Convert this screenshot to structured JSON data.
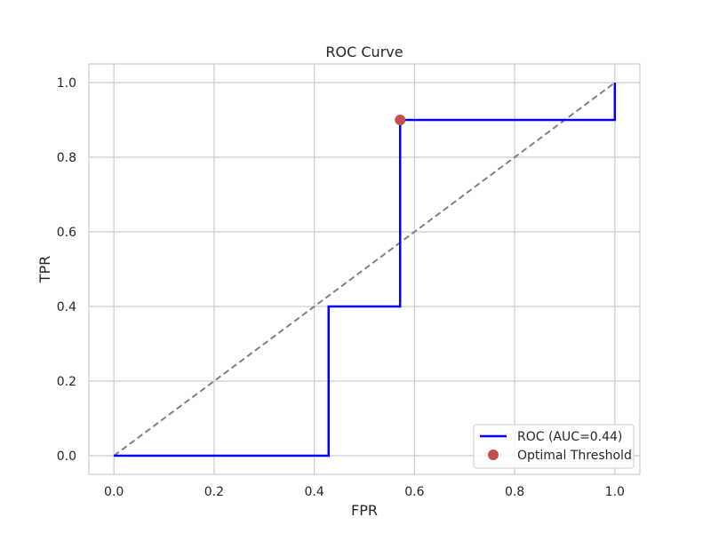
{
  "chart_data": {
    "type": "line",
    "title": "ROC Curve",
    "xlabel": "FPR",
    "ylabel": "TPR",
    "xlim": [
      -0.05,
      1.05
    ],
    "ylim": [
      -0.05,
      1.05
    ],
    "xticks": [
      0.0,
      0.2,
      0.4,
      0.6,
      0.8,
      1.0
    ],
    "yticks": [
      0.0,
      0.2,
      0.4,
      0.6,
      0.8,
      1.0
    ],
    "xtick_labels": [
      "0.0",
      "0.2",
      "0.4",
      "0.6",
      "0.8",
      "1.0"
    ],
    "ytick_labels": [
      "0.0",
      "0.2",
      "0.4",
      "0.6",
      "0.8",
      "1.0"
    ],
    "grid": true,
    "legend_position": "lower-right",
    "series": [
      {
        "name": "ROC (AUC=0.44)",
        "kind": "step-line",
        "color": "#0000ff",
        "x": [
          0.0,
          0.0,
          0.4286,
          0.4286,
          0.5714,
          0.5714,
          1.0,
          1.0
        ],
        "y": [
          0.0,
          0.0,
          0.0,
          0.4,
          0.4,
          0.9,
          0.9,
          1.0
        ]
      },
      {
        "name": "Optimal Threshold",
        "kind": "marker",
        "color": "#c44e52",
        "x": [
          0.5714
        ],
        "y": [
          0.9
        ]
      }
    ],
    "reference_line": {
      "style": "dashed",
      "color": "#808080",
      "x": [
        0.0,
        1.0
      ],
      "y": [
        0.0,
        1.0
      ]
    }
  }
}
